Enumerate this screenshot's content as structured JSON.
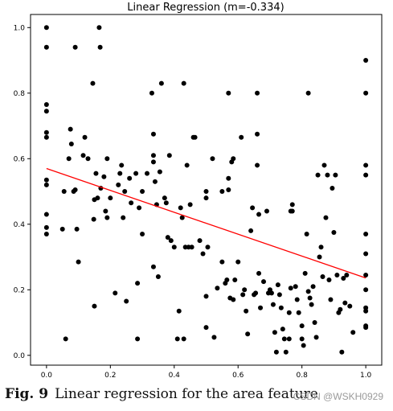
{
  "chart_data": {
    "type": "scatter",
    "title": "Linear Regression (m=-0.334)",
    "xlabel": "",
    "ylabel": "",
    "xlim": [
      -0.05,
      1.05
    ],
    "ylim": [
      -0.03,
      1.04
    ],
    "xticks": [
      "0.0",
      "0.2",
      "0.4",
      "0.6",
      "0.8",
      "1.0"
    ],
    "xtick_values": [
      0,
      0.2,
      0.4,
      0.6,
      0.8,
      1.0
    ],
    "yticks": [
      "0.0",
      "0.2",
      "0.4",
      "0.6",
      "0.8",
      "1.0"
    ],
    "ytick_values": [
      0,
      0.2,
      0.4,
      0.6,
      0.8,
      1.0
    ],
    "grid": false,
    "point_color": "#000000",
    "line_color": "#ff0000",
    "regression_line": {
      "x": [
        0,
        1
      ],
      "y": [
        0.57,
        0.236
      ]
    },
    "points": [
      [
        0,
        1.0
      ],
      [
        0,
        0.94
      ],
      [
        0,
        0.765
      ],
      [
        0,
        0.745
      ],
      [
        0,
        0.68
      ],
      [
        0,
        0.665
      ],
      [
        0,
        0.535
      ],
      [
        0,
        0.52
      ],
      [
        0,
        0.43
      ],
      [
        0,
        0.39
      ],
      [
        0,
        0.37
      ],
      [
        0.05,
        0.385
      ],
      [
        0.055,
        0.5
      ],
      [
        0.06,
        0.05
      ],
      [
        0.07,
        0.6
      ],
      [
        0.075,
        0.69
      ],
      [
        0.078,
        0.645
      ],
      [
        0.085,
        0.5
      ],
      [
        0.09,
        0.94
      ],
      [
        0.09,
        0.505
      ],
      [
        0.095,
        0.385
      ],
      [
        0.1,
        0.285
      ],
      [
        0.115,
        0.61
      ],
      [
        0.12,
        0.665
      ],
      [
        0.13,
        0.6
      ],
      [
        0.145,
        0.83
      ],
      [
        0.148,
        0.415
      ],
      [
        0.15,
        0.475
      ],
      [
        0.15,
        0.15
      ],
      [
        0.155,
        0.555
      ],
      [
        0.16,
        0.48
      ],
      [
        0.165,
        1.0
      ],
      [
        0.168,
        0.94
      ],
      [
        0.17,
        0.51
      ],
      [
        0.18,
        0.545
      ],
      [
        0.185,
        0.44
      ],
      [
        0.19,
        0.6
      ],
      [
        0.19,
        0.42
      ],
      [
        0.2,
        0.48
      ],
      [
        0.215,
        0.19
      ],
      [
        0.225,
        0.52
      ],
      [
        0.23,
        0.555
      ],
      [
        0.235,
        0.58
      ],
      [
        0.24,
        0.42
      ],
      [
        0.245,
        0.5
      ],
      [
        0.25,
        0.165
      ],
      [
        0.26,
        0.54
      ],
      [
        0.265,
        0.465
      ],
      [
        0.28,
        0.555
      ],
      [
        0.285,
        0.05
      ],
      [
        0.285,
        0.22
      ],
      [
        0.29,
        0.45
      ],
      [
        0.3,
        0.5
      ],
      [
        0.3,
        0.37
      ],
      [
        0.315,
        0.555
      ],
      [
        0.33,
        0.8
      ],
      [
        0.335,
        0.675
      ],
      [
        0.335,
        0.61
      ],
      [
        0.335,
        0.59
      ],
      [
        0.335,
        0.27
      ],
      [
        0.34,
        0.53
      ],
      [
        0.345,
        0.46
      ],
      [
        0.35,
        0.24
      ],
      [
        0.355,
        0.56
      ],
      [
        0.36,
        0.83
      ],
      [
        0.37,
        0.48
      ],
      [
        0.375,
        0.465
      ],
      [
        0.38,
        0.36
      ],
      [
        0.385,
        0.61
      ],
      [
        0.39,
        0.35
      ],
      [
        0.4,
        0.33
      ],
      [
        0.41,
        0.05
      ],
      [
        0.415,
        0.135
      ],
      [
        0.42,
        0.45
      ],
      [
        0.425,
        0.42
      ],
      [
        0.43,
        0.83
      ],
      [
        0.43,
        0.05
      ],
      [
        0.435,
        0.33
      ],
      [
        0.44,
        0.58
      ],
      [
        0.445,
        0.33
      ],
      [
        0.45,
        0.46
      ],
      [
        0.455,
        0.33
      ],
      [
        0.46,
        0.665
      ],
      [
        0.465,
        0.665
      ],
      [
        0.48,
        0.35
      ],
      [
        0.49,
        0.31
      ],
      [
        0.5,
        0.5
      ],
      [
        0.5,
        0.48
      ],
      [
        0.5,
        0.18
      ],
      [
        0.5,
        0.085
      ],
      [
        0.505,
        0.33
      ],
      [
        0.52,
        0.6
      ],
      [
        0.525,
        0.055
      ],
      [
        0.535,
        0.205
      ],
      [
        0.55,
        0.5
      ],
      [
        0.55,
        0.285
      ],
      [
        0.56,
        0.22
      ],
      [
        0.565,
        0.23
      ],
      [
        0.57,
        0.8
      ],
      [
        0.57,
        0.54
      ],
      [
        0.57,
        0.505
      ],
      [
        0.575,
        0.175
      ],
      [
        0.58,
        0.59
      ],
      [
        0.585,
        0.6
      ],
      [
        0.585,
        0.17
      ],
      [
        0.59,
        0.23
      ],
      [
        0.6,
        0.285
      ],
      [
        0.61,
        0.665
      ],
      [
        0.615,
        0.185
      ],
      [
        0.62,
        0.2
      ],
      [
        0.625,
        0.135
      ],
      [
        0.63,
        0.065
      ],
      [
        0.64,
        0.38
      ],
      [
        0.645,
        0.45
      ],
      [
        0.65,
        0.185
      ],
      [
        0.655,
        0.19
      ],
      [
        0.66,
        0.8
      ],
      [
        0.66,
        0.675
      ],
      [
        0.66,
        0.58
      ],
      [
        0.665,
        0.43
      ],
      [
        0.665,
        0.25
      ],
      [
        0.67,
        0.145
      ],
      [
        0.68,
        0.225
      ],
      [
        0.69,
        0.44
      ],
      [
        0.695,
        0.19
      ],
      [
        0.7,
        0.2
      ],
      [
        0.705,
        0.19
      ],
      [
        0.71,
        0.155
      ],
      [
        0.715,
        0.07
      ],
      [
        0.72,
        0.01
      ],
      [
        0.725,
        0.215
      ],
      [
        0.73,
        0.185
      ],
      [
        0.735,
        0.145
      ],
      [
        0.74,
        0.08
      ],
      [
        0.745,
        0.05
      ],
      [
        0.75,
        0.01
      ],
      [
        0.76,
        0.13
      ],
      [
        0.76,
        0.05
      ],
      [
        0.765,
        0.44
      ],
      [
        0.765,
        0.205
      ],
      [
        0.77,
        0.44
      ],
      [
        0.77,
        0.46
      ],
      [
        0.78,
        0.21
      ],
      [
        0.785,
        0.17
      ],
      [
        0.79,
        0.13
      ],
      [
        0.8,
        0.09
      ],
      [
        0.8,
        0.05
      ],
      [
        0.805,
        0.03
      ],
      [
        0.81,
        0.25
      ],
      [
        0.815,
        0.37
      ],
      [
        0.82,
        0.8
      ],
      [
        0.82,
        0.195
      ],
      [
        0.825,
        0.175
      ],
      [
        0.83,
        0.155
      ],
      [
        0.835,
        0.21
      ],
      [
        0.84,
        0.1
      ],
      [
        0.845,
        0.055
      ],
      [
        0.85,
        0.55
      ],
      [
        0.855,
        0.3
      ],
      [
        0.86,
        0.33
      ],
      [
        0.865,
        0.24
      ],
      [
        0.87,
        0.58
      ],
      [
        0.875,
        0.42
      ],
      [
        0.88,
        0.55
      ],
      [
        0.885,
        0.23
      ],
      [
        0.89,
        0.17
      ],
      [
        0.895,
        0.51
      ],
      [
        0.9,
        0.375
      ],
      [
        0.905,
        0.55
      ],
      [
        0.91,
        0.245
      ],
      [
        0.915,
        0.13
      ],
      [
        0.92,
        0.14
      ],
      [
        0.925,
        0.01
      ],
      [
        0.93,
        0.235
      ],
      [
        0.935,
        0.16
      ],
      [
        0.94,
        0.245
      ],
      [
        0.95,
        0.15
      ],
      [
        0.96,
        0.07
      ],
      [
        1.0,
        0.9
      ],
      [
        1.0,
        0.8
      ],
      [
        1.0,
        0.58
      ],
      [
        1.0,
        0.55
      ],
      [
        1.0,
        0.37
      ],
      [
        1.0,
        0.31
      ],
      [
        1.0,
        0.245
      ],
      [
        1.0,
        0.2
      ],
      [
        1.0,
        0.145
      ],
      [
        1.0,
        0.135
      ],
      [
        1.0,
        0.09
      ],
      [
        1.0,
        0.085
      ]
    ]
  },
  "caption": {
    "label": "Fig. 9",
    "text": "Linear regression for the area feature"
  },
  "watermark": "CSDN @WSKH0929"
}
